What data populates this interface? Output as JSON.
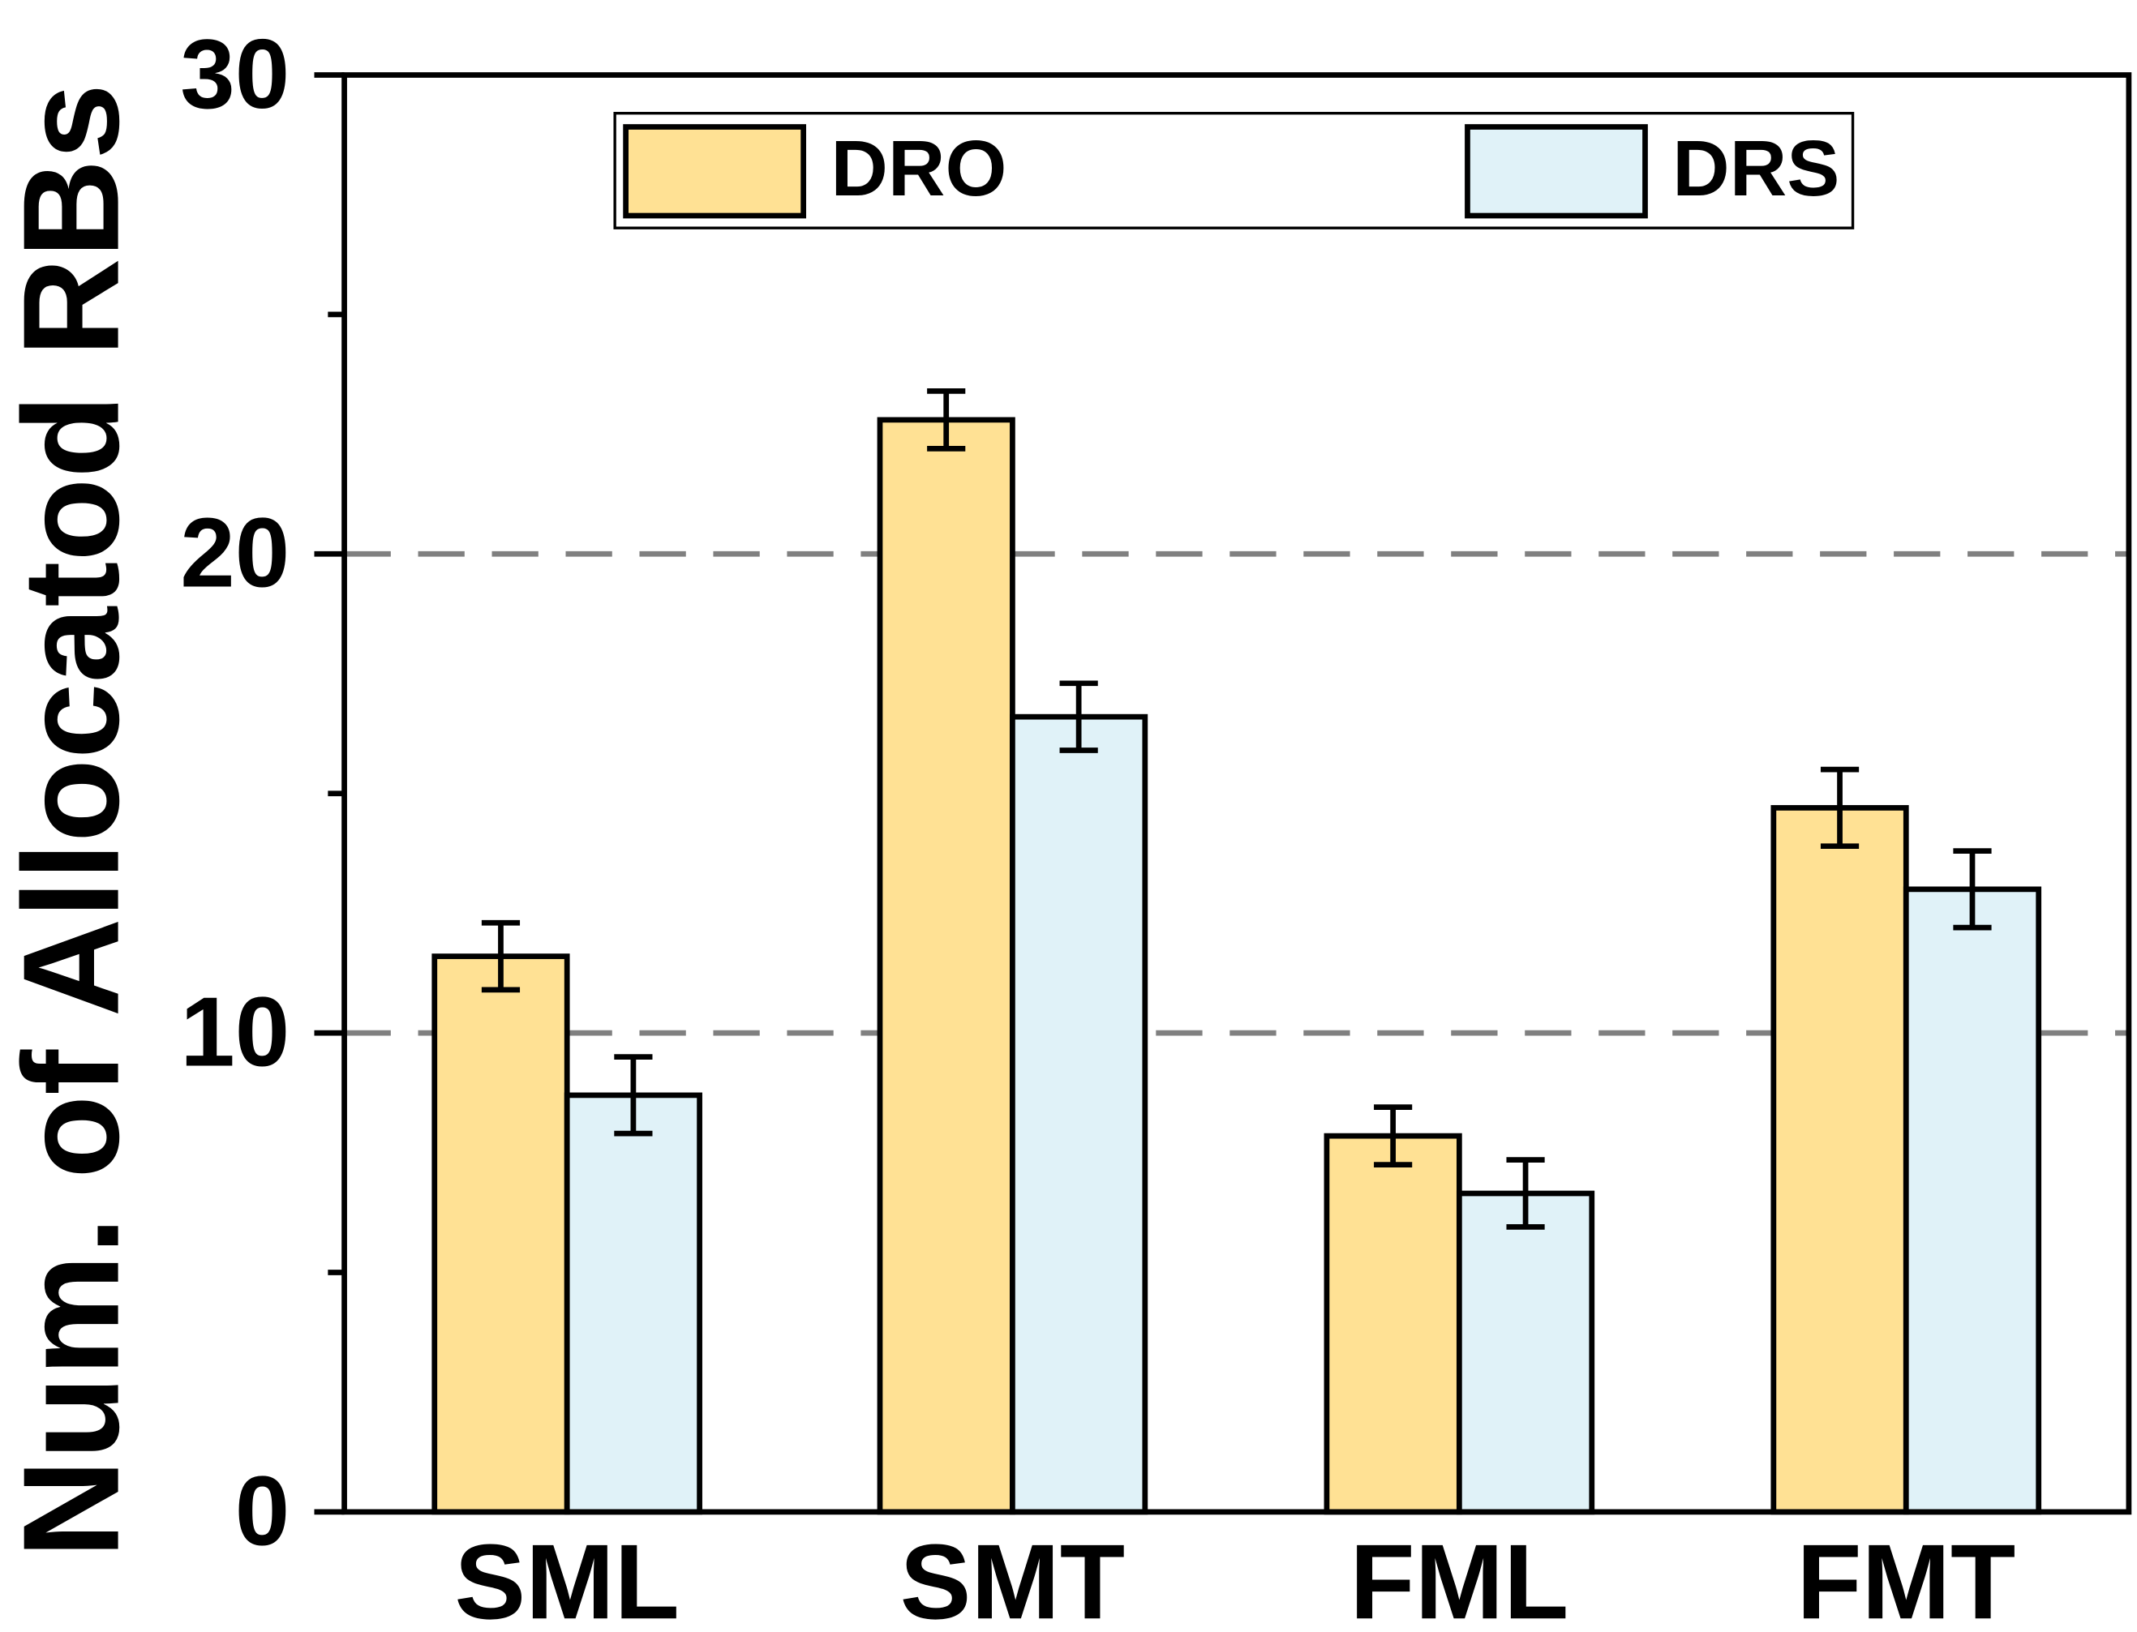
{
  "chart_data": {
    "type": "bar",
    "title": "",
    "xlabel": "",
    "ylabel": "Num. of Allocatod RBs",
    "ylim": [
      0,
      30
    ],
    "yticks_major": [
      0,
      10,
      20,
      30
    ],
    "yticks_minor": [
      5,
      15,
      25
    ],
    "gridlines_at": [
      10,
      20
    ],
    "categories": [
      "SML",
      "SMT",
      "FML",
      "FMT"
    ],
    "series": [
      {
        "name": "DRO",
        "color": "#FFE194",
        "values": [
          11.6,
          22.8,
          7.85,
          14.7
        ],
        "errors": [
          0.7,
          0.6,
          0.6,
          0.8
        ]
      },
      {
        "name": "DRS",
        "color": "#E0F2F8",
        "values": [
          8.7,
          16.6,
          6.65,
          13.0
        ],
        "errors": [
          0.8,
          0.7,
          0.7,
          0.8
        ]
      }
    ],
    "legend_position": "top"
  }
}
